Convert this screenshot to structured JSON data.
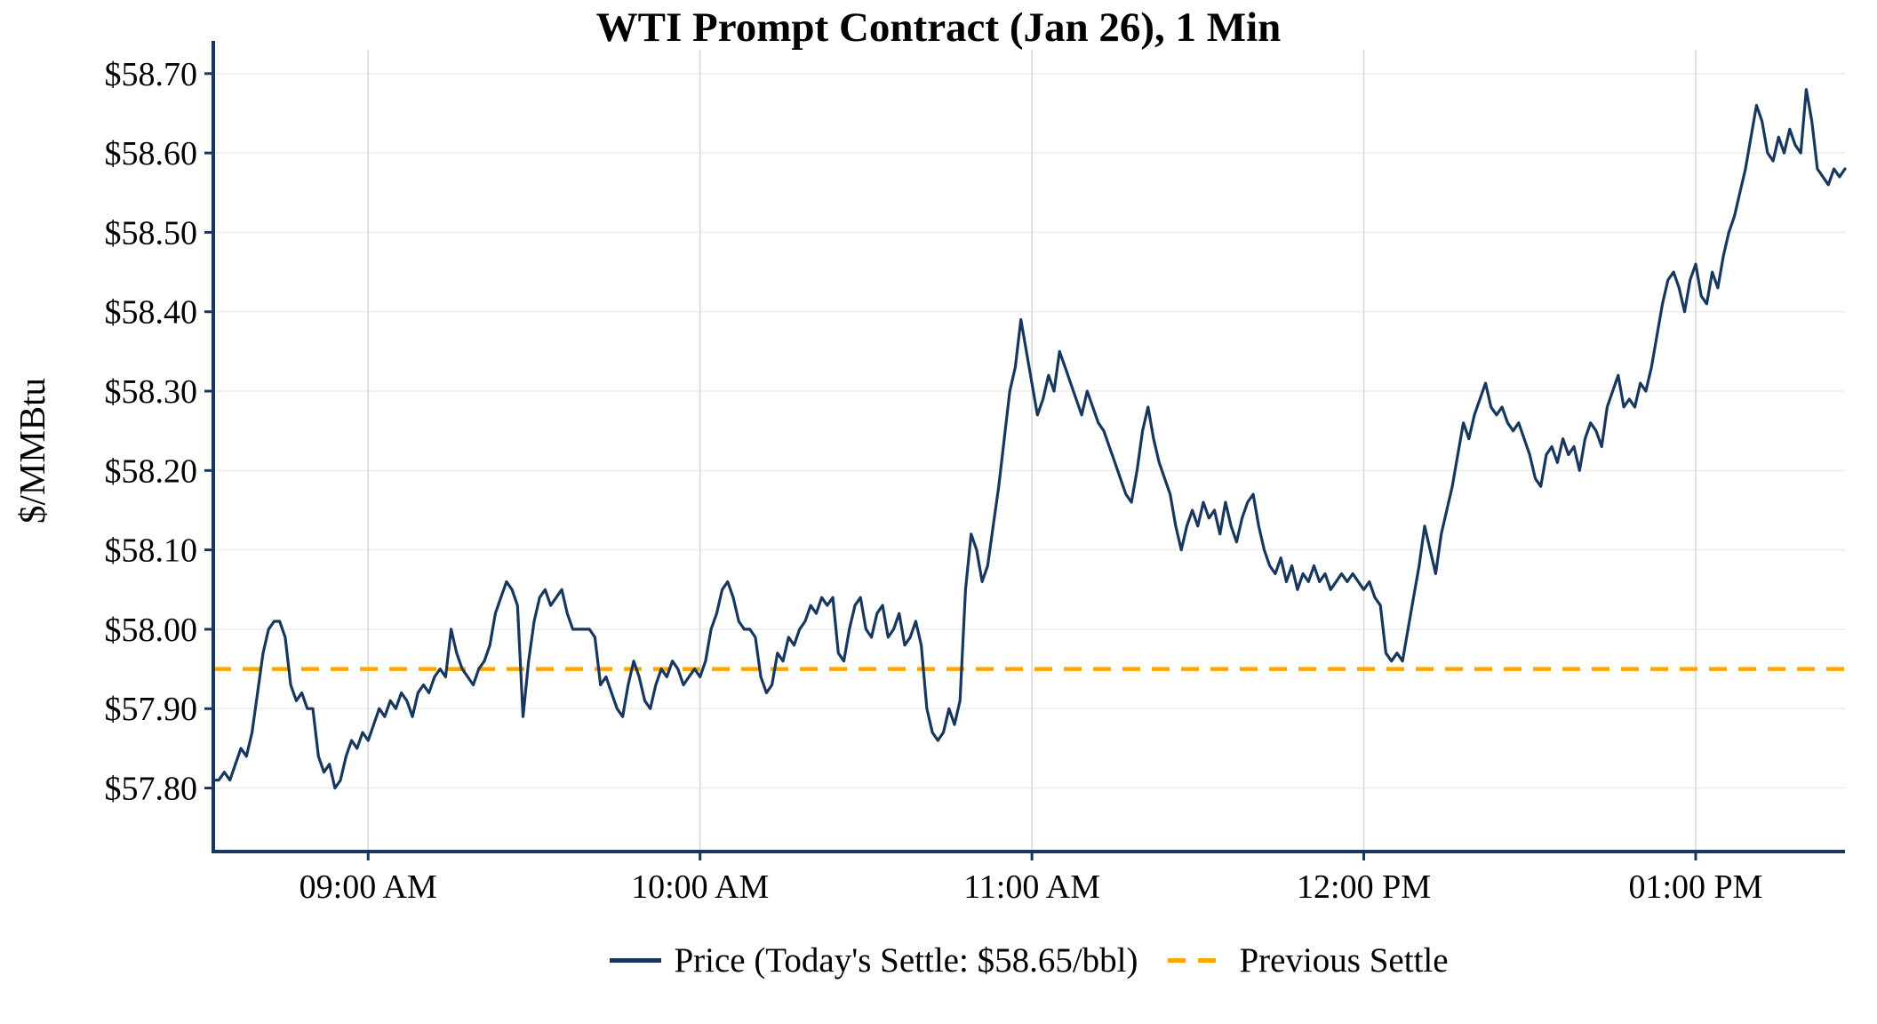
{
  "chart_data": {
    "type": "line",
    "title": "WTI Prompt Contract (Jan 26), 1 Min",
    "ylabel": "$/MMBtu",
    "xlabel": "",
    "x_interval": "1 min",
    "x_start": "08:32 AM",
    "x_end": "01:27 PM",
    "ylim": [
      57.72,
      58.73
    ],
    "grid": true,
    "legend_position": "bottom",
    "axis_color": "#17375E",
    "y_ticks": [
      {
        "label": "$57.80",
        "value": 57.8
      },
      {
        "label": "$57.90",
        "value": 57.9
      },
      {
        "label": "$58.00",
        "value": 58.0
      },
      {
        "label": "$58.10",
        "value": 58.1
      },
      {
        "label": "$58.20",
        "value": 58.2
      },
      {
        "label": "$58.30",
        "value": 58.3
      },
      {
        "label": "$58.40",
        "value": 58.4
      },
      {
        "label": "$58.50",
        "value": 58.5
      },
      {
        "label": "$58.60",
        "value": 58.6
      },
      {
        "label": "$58.70",
        "value": 58.7
      }
    ],
    "x_ticks": [
      {
        "label": "09:00 AM",
        "index": 28
      },
      {
        "label": "10:00 AM",
        "index": 88
      },
      {
        "label": "11:00 AM",
        "index": 148
      },
      {
        "label": "12:00 PM",
        "index": 208
      },
      {
        "label": "01:00 PM",
        "index": 268
      }
    ],
    "series": [
      {
        "name": "Price (Today's Settle: $58.65/bbl)",
        "type": "line",
        "color": "#17375E",
        "today_settle": "$58.65/bbl",
        "values": [
          57.81,
          57.81,
          57.82,
          57.81,
          57.83,
          57.85,
          57.84,
          57.87,
          57.92,
          57.97,
          58.0,
          58.01,
          58.01,
          57.99,
          57.93,
          57.91,
          57.92,
          57.9,
          57.9,
          57.84,
          57.82,
          57.83,
          57.8,
          57.81,
          57.84,
          57.86,
          57.85,
          57.87,
          57.86,
          57.88,
          57.9,
          57.89,
          57.91,
          57.9,
          57.92,
          57.91,
          57.89,
          57.92,
          57.93,
          57.92,
          57.94,
          57.95,
          57.94,
          58.0,
          57.97,
          57.95,
          57.94,
          57.93,
          57.95,
          57.96,
          57.98,
          58.02,
          58.04,
          58.06,
          58.05,
          58.03,
          57.89,
          57.96,
          58.01,
          58.04,
          58.05,
          58.03,
          58.04,
          58.05,
          58.02,
          58.0,
          58.0,
          58.0,
          58.0,
          57.99,
          57.93,
          57.94,
          57.92,
          57.9,
          57.89,
          57.93,
          57.96,
          57.94,
          57.91,
          57.9,
          57.93,
          57.95,
          57.94,
          57.96,
          57.95,
          57.93,
          57.94,
          57.95,
          57.94,
          57.96,
          58.0,
          58.02,
          58.05,
          58.06,
          58.04,
          58.01,
          58.0,
          58.0,
          57.99,
          57.94,
          57.92,
          57.93,
          57.97,
          57.96,
          57.99,
          57.98,
          58.0,
          58.01,
          58.03,
          58.02,
          58.04,
          58.03,
          58.04,
          57.97,
          57.96,
          58.0,
          58.03,
          58.04,
          58.0,
          57.99,
          58.02,
          58.03,
          57.99,
          58.0,
          58.02,
          57.98,
          57.99,
          58.01,
          57.98,
          57.9,
          57.87,
          57.86,
          57.87,
          57.9,
          57.88,
          57.91,
          58.05,
          58.12,
          58.1,
          58.06,
          58.08,
          58.13,
          58.18,
          58.24,
          58.3,
          58.33,
          58.39,
          58.35,
          58.31,
          58.27,
          58.29,
          58.32,
          58.3,
          58.35,
          58.33,
          58.31,
          58.29,
          58.27,
          58.3,
          58.28,
          58.26,
          58.25,
          58.23,
          58.21,
          58.19,
          58.17,
          58.16,
          58.2,
          58.25,
          58.28,
          58.24,
          58.21,
          58.19,
          58.17,
          58.13,
          58.1,
          58.13,
          58.15,
          58.13,
          58.16,
          58.14,
          58.15,
          58.12,
          58.16,
          58.13,
          58.11,
          58.14,
          58.16,
          58.17,
          58.13,
          58.1,
          58.08,
          58.07,
          58.09,
          58.06,
          58.08,
          58.05,
          58.07,
          58.06,
          58.08,
          58.06,
          58.07,
          58.05,
          58.06,
          58.07,
          58.06,
          58.07,
          58.06,
          58.05,
          58.06,
          58.04,
          58.03,
          57.97,
          57.96,
          57.97,
          57.96,
          58.0,
          58.04,
          58.08,
          58.13,
          58.1,
          58.07,
          58.12,
          58.15,
          58.18,
          58.22,
          58.26,
          58.24,
          58.27,
          58.29,
          58.31,
          58.28,
          58.27,
          58.28,
          58.26,
          58.25,
          58.26,
          58.24,
          58.22,
          58.19,
          58.18,
          58.22,
          58.23,
          58.21,
          58.24,
          58.22,
          58.23,
          58.2,
          58.24,
          58.26,
          58.25,
          58.23,
          58.28,
          58.3,
          58.32,
          58.28,
          58.29,
          58.28,
          58.31,
          58.3,
          58.33,
          58.37,
          58.41,
          58.44,
          58.45,
          58.43,
          58.4,
          58.44,
          58.46,
          58.42,
          58.41,
          58.45,
          58.43,
          58.47,
          58.5,
          58.52,
          58.55,
          58.58,
          58.62,
          58.66,
          58.64,
          58.6,
          58.59,
          58.62,
          58.6,
          58.63,
          58.61,
          58.6,
          58.68,
          58.64,
          58.58,
          58.57,
          58.56,
          58.58,
          58.57,
          58.58
        ]
      },
      {
        "name": "Previous Settle",
        "type": "dashed-horizontal-line",
        "color": "#FFA500",
        "value": 57.95
      }
    ]
  }
}
